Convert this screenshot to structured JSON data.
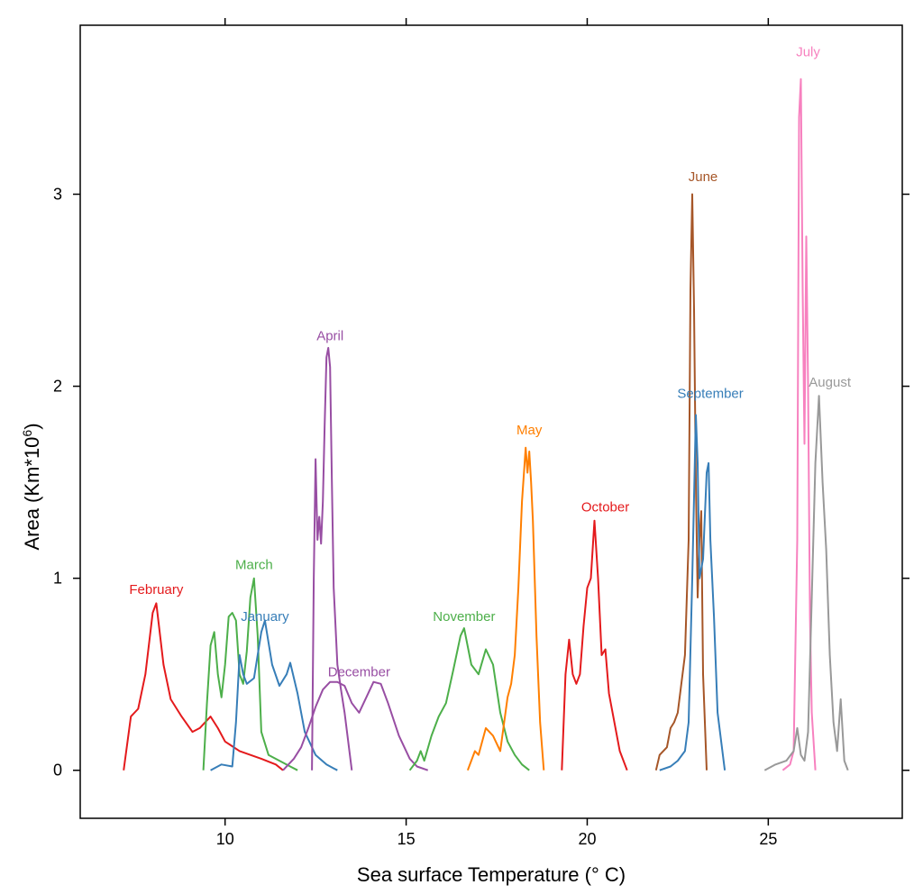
{
  "chart_data": {
    "type": "line",
    "xlabel": "Sea surface Temperature (° C)",
    "ylabel_main": "Area (Km*10",
    "ylabel_exp": "6",
    "ylabel_close": ")",
    "xlim": [
      6.0,
      28.7
    ],
    "ylim": [
      -0.25,
      3.88
    ],
    "xticks": [
      10,
      15,
      20,
      25
    ],
    "xtick_labels": [
      "10",
      "15",
      "20",
      "25"
    ],
    "yticks": [
      0,
      1,
      2,
      3
    ],
    "ytick_labels": [
      "0",
      "1",
      "2",
      "3"
    ],
    "grid": false,
    "legend": "none (series labelled at peaks)",
    "series": [
      {
        "name": "February",
        "color": "#e41a1c",
        "label_at": [
          8.1,
          0.9
        ],
        "x": [
          7.2,
          7.4,
          7.6,
          7.8,
          8.0,
          8.1,
          8.3,
          8.5,
          8.8,
          9.1,
          9.3,
          9.6,
          9.8,
          10.0,
          10.4,
          11.0,
          11.4,
          11.6
        ],
        "y": [
          0.0,
          0.28,
          0.32,
          0.5,
          0.82,
          0.87,
          0.55,
          0.37,
          0.28,
          0.2,
          0.22,
          0.28,
          0.22,
          0.15,
          0.1,
          0.06,
          0.03,
          0.0
        ]
      },
      {
        "name": "March",
        "color": "#4daf4a",
        "label_at": [
          10.8,
          1.03
        ],
        "x": [
          9.4,
          9.5,
          9.6,
          9.7,
          9.8,
          9.9,
          10.0,
          10.1,
          10.2,
          10.3,
          10.4,
          10.5,
          10.6,
          10.7,
          10.8,
          10.9,
          11.0,
          11.2,
          11.5,
          11.8,
          12.0
        ],
        "y": [
          0.0,
          0.35,
          0.65,
          0.72,
          0.5,
          0.38,
          0.55,
          0.8,
          0.82,
          0.78,
          0.5,
          0.45,
          0.62,
          0.9,
          1.0,
          0.7,
          0.2,
          0.08,
          0.05,
          0.02,
          0.0
        ]
      },
      {
        "name": "January",
        "color": "#377eb8",
        "label_at": [
          11.1,
          0.76
        ],
        "x": [
          9.6,
          9.9,
          10.2,
          10.3,
          10.4,
          10.5,
          10.6,
          10.8,
          11.0,
          11.1,
          11.3,
          11.5,
          11.7,
          11.8,
          12.0,
          12.2,
          12.5,
          12.8,
          13.0,
          13.1
        ],
        "y": [
          0.0,
          0.03,
          0.02,
          0.25,
          0.6,
          0.5,
          0.45,
          0.48,
          0.72,
          0.78,
          0.55,
          0.44,
          0.5,
          0.56,
          0.4,
          0.2,
          0.08,
          0.03,
          0.01,
          0.0
        ]
      },
      {
        "name": "April",
        "color": "#984ea3",
        "label_at": [
          12.9,
          2.22
        ],
        "x": [
          12.4,
          12.45,
          12.5,
          12.55,
          12.6,
          12.65,
          12.7,
          12.75,
          12.8,
          12.85,
          12.9,
          12.95,
          13.0,
          13.1,
          13.2,
          13.3,
          13.4,
          13.5
        ],
        "y": [
          0.0,
          1.0,
          1.62,
          1.2,
          1.32,
          1.18,
          1.4,
          1.8,
          2.15,
          2.2,
          2.1,
          1.5,
          0.95,
          0.55,
          0.42,
          0.3,
          0.15,
          0.0
        ]
      },
      {
        "name": "December",
        "color": "#984ea3",
        "label_at": [
          13.7,
          0.47
        ],
        "x": [
          11.6,
          11.9,
          12.1,
          12.3,
          12.5,
          12.7,
          12.9,
          13.1,
          13.3,
          13.5,
          13.7,
          13.9,
          14.1,
          14.3,
          14.5,
          14.8,
          15.1,
          15.3,
          15.6
        ],
        "y": [
          0.0,
          0.06,
          0.12,
          0.22,
          0.33,
          0.42,
          0.46,
          0.46,
          0.44,
          0.35,
          0.3,
          0.38,
          0.46,
          0.45,
          0.35,
          0.18,
          0.06,
          0.02,
          0.0
        ]
      },
      {
        "name": "November",
        "color": "#4daf4a",
        "label_at": [
          16.6,
          0.76
        ],
        "x": [
          15.1,
          15.3,
          15.4,
          15.5,
          15.7,
          15.9,
          16.1,
          16.3,
          16.5,
          16.6,
          16.8,
          17.0,
          17.2,
          17.4,
          17.6,
          17.8,
          18.0,
          18.2,
          18.4
        ],
        "y": [
          0.0,
          0.05,
          0.1,
          0.05,
          0.18,
          0.28,
          0.35,
          0.52,
          0.7,
          0.74,
          0.55,
          0.5,
          0.63,
          0.55,
          0.3,
          0.15,
          0.08,
          0.03,
          0.0
        ]
      },
      {
        "name": "May",
        "color": "#ff7f00",
        "label_at": [
          18.4,
          1.73
        ],
        "x": [
          16.7,
          16.9,
          17.0,
          17.2,
          17.4,
          17.6,
          17.8,
          17.9,
          18.0,
          18.1,
          18.2,
          18.3,
          18.35,
          18.4,
          18.45,
          18.5,
          18.6,
          18.7,
          18.8
        ],
        "y": [
          0.0,
          0.1,
          0.08,
          0.22,
          0.18,
          0.1,
          0.38,
          0.45,
          0.6,
          0.95,
          1.4,
          1.68,
          1.55,
          1.66,
          1.5,
          1.3,
          0.7,
          0.25,
          0.0
        ]
      },
      {
        "name": "October",
        "color": "#e41a1c",
        "label_at": [
          20.5,
          1.33
        ],
        "x": [
          19.3,
          19.4,
          19.5,
          19.6,
          19.7,
          19.8,
          19.9,
          20.0,
          20.1,
          20.2,
          20.3,
          20.4,
          20.5,
          20.6,
          20.7,
          20.9,
          21.1
        ],
        "y": [
          0.0,
          0.5,
          0.68,
          0.5,
          0.45,
          0.5,
          0.75,
          0.95,
          1.0,
          1.3,
          1.0,
          0.6,
          0.63,
          0.4,
          0.3,
          0.1,
          0.0
        ]
      },
      {
        "name": "June",
        "color": "#a65628",
        "label_at": [
          23.2,
          3.05
        ],
        "x": [
          21.9,
          22.0,
          22.2,
          22.3,
          22.4,
          22.5,
          22.6,
          22.7,
          22.8,
          22.85,
          22.9,
          22.95,
          23.0,
          23.05,
          23.1,
          23.15,
          23.2,
          23.3
        ],
        "y": [
          0.0,
          0.08,
          0.12,
          0.22,
          0.25,
          0.3,
          0.45,
          0.6,
          1.2,
          2.5,
          3.0,
          2.4,
          1.5,
          0.9,
          1.2,
          1.35,
          0.5,
          0.0
        ]
      },
      {
        "name": "September",
        "color": "#377eb8",
        "label_at": [
          23.4,
          1.92
        ],
        "x": [
          22.0,
          22.3,
          22.5,
          22.7,
          22.8,
          22.9,
          23.0,
          23.05,
          23.1,
          23.2,
          23.3,
          23.35,
          23.4,
          23.5,
          23.6,
          23.8
        ],
        "y": [
          0.0,
          0.02,
          0.05,
          0.1,
          0.25,
          1.0,
          1.85,
          1.6,
          1.0,
          1.1,
          1.55,
          1.6,
          1.2,
          0.8,
          0.3,
          0.0
        ]
      },
      {
        "name": "July",
        "color": "#f781bf",
        "label_at": [
          26.1,
          3.7
        ],
        "x": [
          25.4,
          25.6,
          25.7,
          25.8,
          25.85,
          25.9,
          25.95,
          26.0,
          26.05,
          26.1,
          26.15,
          26.2,
          26.3
        ],
        "y": [
          0.0,
          0.03,
          0.1,
          1.2,
          3.4,
          3.6,
          2.5,
          1.7,
          2.78,
          2.0,
          0.8,
          0.3,
          0.0
        ]
      },
      {
        "name": "August",
        "color": "#999999",
        "label_at": [
          26.7,
          1.98
        ],
        "x": [
          24.9,
          25.2,
          25.5,
          25.7,
          25.8,
          25.9,
          26.0,
          26.1,
          26.2,
          26.3,
          26.4,
          26.5,
          26.6,
          26.7,
          26.8,
          26.9,
          27.0,
          27.1,
          27.2
        ],
        "y": [
          0.0,
          0.03,
          0.05,
          0.1,
          0.22,
          0.08,
          0.05,
          0.2,
          0.9,
          1.6,
          1.95,
          1.5,
          1.15,
          0.6,
          0.25,
          0.1,
          0.37,
          0.05,
          0.0
        ]
      }
    ]
  }
}
